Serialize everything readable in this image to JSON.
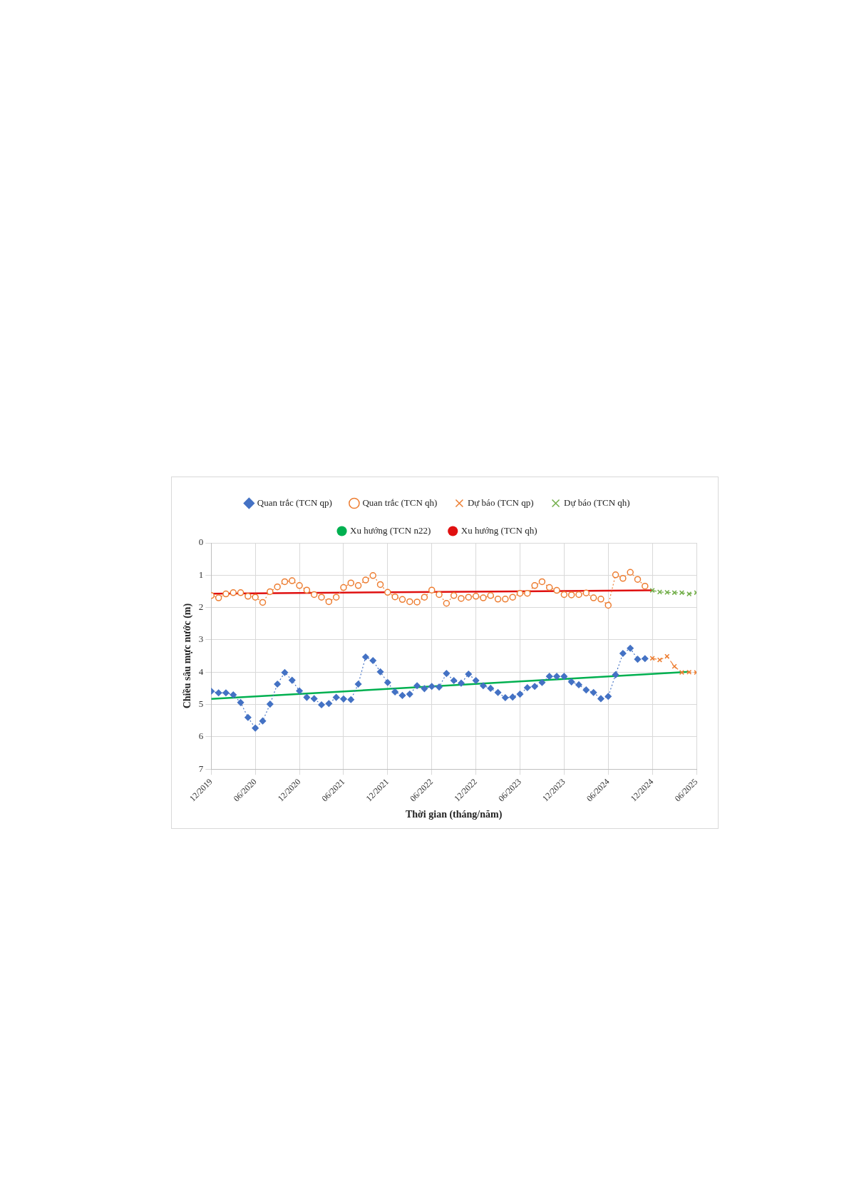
{
  "chart_data": {
    "type": "line",
    "xlabel": "Thời gian (tháng/năm)",
    "ylabel": "Chiều sâu mực nước (m)",
    "xlim": [
      "2019-12",
      "2025-06"
    ],
    "xticks": [
      {
        "value": "2019-12",
        "label": "12/2019"
      },
      {
        "value": "2020-06",
        "label": "06/2020"
      },
      {
        "value": "2020-12",
        "label": "12/2020"
      },
      {
        "value": "2021-06",
        "label": "06/2021"
      },
      {
        "value": "2021-12",
        "label": "12/2021"
      },
      {
        "value": "2022-06",
        "label": "06/2022"
      },
      {
        "value": "2022-12",
        "label": "12/2022"
      },
      {
        "value": "2023-06",
        "label": "06/2023"
      },
      {
        "value": "2023-12",
        "label": "12/2023"
      },
      {
        "value": "2024-06",
        "label": "06/2024"
      },
      {
        "value": "2024-12",
        "label": "12/2024"
      },
      {
        "value": "2025-06",
        "label": "06/2025"
      }
    ],
    "ylim": [
      7,
      0
    ],
    "yticks": [
      0,
      1,
      2,
      3,
      4,
      5,
      6,
      7
    ],
    "grid": true,
    "legend": "top",
    "series": [
      {
        "name": "Quan trắc (TCN qp)",
        "color": "#4472c4",
        "marker": "diamond",
        "line_style": "dotted",
        "x": [
          "2019-12",
          "2020-01",
          "2020-02",
          "2020-03",
          "2020-04",
          "2020-05",
          "2020-06",
          "2020-07",
          "2020-08",
          "2020-09",
          "2020-10",
          "2020-11",
          "2020-12",
          "2021-01",
          "2021-02",
          "2021-03",
          "2021-04",
          "2021-05",
          "2021-06",
          "2021-07",
          "2021-08",
          "2021-09",
          "2021-10",
          "2021-11",
          "2021-12",
          "2022-01",
          "2022-02",
          "2022-03",
          "2022-04",
          "2022-05",
          "2022-06",
          "2022-07",
          "2022-08",
          "2022-09",
          "2022-10",
          "2022-11",
          "2022-12",
          "2023-01",
          "2023-02",
          "2023-03",
          "2023-04",
          "2023-05",
          "2023-06",
          "2023-07",
          "2023-08",
          "2023-09",
          "2023-10",
          "2023-11",
          "2023-12",
          "2024-01",
          "2024-02",
          "2024-03",
          "2024-04",
          "2024-05",
          "2024-06",
          "2024-07",
          "2024-08",
          "2024-09",
          "2024-10",
          "2024-11"
        ],
        "values": [
          4.59,
          4.64,
          4.64,
          4.7,
          4.94,
          5.4,
          5.73,
          5.51,
          4.99,
          4.37,
          4.01,
          4.25,
          4.58,
          4.78,
          4.82,
          5.01,
          4.97,
          4.78,
          4.83,
          4.85,
          4.37,
          3.53,
          3.64,
          3.99,
          4.32,
          4.61,
          4.72,
          4.68,
          4.42,
          4.51,
          4.44,
          4.46,
          4.04,
          4.26,
          4.34,
          4.06,
          4.26,
          4.42,
          4.5,
          4.63,
          4.79,
          4.77,
          4.68,
          4.48,
          4.44,
          4.32,
          4.13,
          4.13,
          4.13,
          4.3,
          4.39,
          4.55,
          4.63,
          4.82,
          4.75,
          4.08,
          3.42,
          3.26,
          3.6,
          3.58
        ]
      },
      {
        "name": "Quan trắc (TCN qh)",
        "color": "#ed7d31",
        "marker": "circle",
        "line_style": "dotted",
        "x": [
          "2019-12",
          "2020-01",
          "2020-02",
          "2020-03",
          "2020-04",
          "2020-05",
          "2020-06",
          "2020-07",
          "2020-08",
          "2020-09",
          "2020-10",
          "2020-11",
          "2020-12",
          "2021-01",
          "2021-02",
          "2021-03",
          "2021-04",
          "2021-05",
          "2021-06",
          "2021-07",
          "2021-08",
          "2021-09",
          "2021-10",
          "2021-11",
          "2021-12",
          "2022-01",
          "2022-02",
          "2022-03",
          "2022-04",
          "2022-05",
          "2022-06",
          "2022-07",
          "2022-08",
          "2022-09",
          "2022-10",
          "2022-11",
          "2022-12",
          "2023-01",
          "2023-02",
          "2023-03",
          "2023-04",
          "2023-05",
          "2023-06",
          "2023-07",
          "2023-08",
          "2023-09",
          "2023-10",
          "2023-11",
          "2023-12",
          "2024-01",
          "2024-02",
          "2024-03",
          "2024-04",
          "2024-05",
          "2024-06",
          "2024-07",
          "2024-08",
          "2024-09",
          "2024-10",
          "2024-11"
        ],
        "values": [
          1.63,
          1.7,
          1.58,
          1.54,
          1.54,
          1.65,
          1.68,
          1.84,
          1.51,
          1.36,
          1.2,
          1.17,
          1.32,
          1.46,
          1.6,
          1.68,
          1.82,
          1.68,
          1.38,
          1.24,
          1.32,
          1.15,
          1.01,
          1.29,
          1.53,
          1.67,
          1.75,
          1.82,
          1.83,
          1.68,
          1.46,
          1.6,
          1.87,
          1.63,
          1.72,
          1.68,
          1.65,
          1.7,
          1.63,
          1.74,
          1.74,
          1.68,
          1.56,
          1.56,
          1.32,
          1.2,
          1.38,
          1.47,
          1.6,
          1.61,
          1.6,
          1.55,
          1.7,
          1.74,
          1.93,
          0.99,
          1.1,
          0.91,
          1.13,
          1.34
        ]
      },
      {
        "name": "Dự báo (TCN qp)",
        "color": "#ed7d31",
        "marker": "cross",
        "line_style": "dashed",
        "x": [
          "2024-12",
          "2025-01",
          "2025-02",
          "2025-03",
          "2025-04",
          "2025-05",
          "2025-06"
        ],
        "values": [
          3.57,
          3.62,
          3.51,
          3.82,
          4.01,
          4.0,
          4.01
        ]
      },
      {
        "name": "Dự báo (TCN qh)",
        "color": "#70ad47",
        "marker": "cross",
        "line_style": "dashed",
        "x": [
          "2024-12",
          "2025-01",
          "2025-02",
          "2025-03",
          "2025-04",
          "2025-05",
          "2025-06"
        ],
        "values": [
          1.47,
          1.52,
          1.53,
          1.54,
          1.54,
          1.58,
          1.54
        ]
      },
      {
        "name": "Xu hướng (TCN n22)",
        "color": "#00b050",
        "marker": "none",
        "line_style": "solid",
        "x": [
          "2019-12",
          "2025-05"
        ],
        "values": [
          4.83,
          3.99
        ]
      },
      {
        "name": "Xu hướng (TCN qh)",
        "color": "#e01010",
        "marker": "none",
        "line_style": "solid",
        "x": [
          "2019-12",
          "2024-12"
        ],
        "values": [
          1.57,
          1.47
        ]
      }
    ]
  }
}
